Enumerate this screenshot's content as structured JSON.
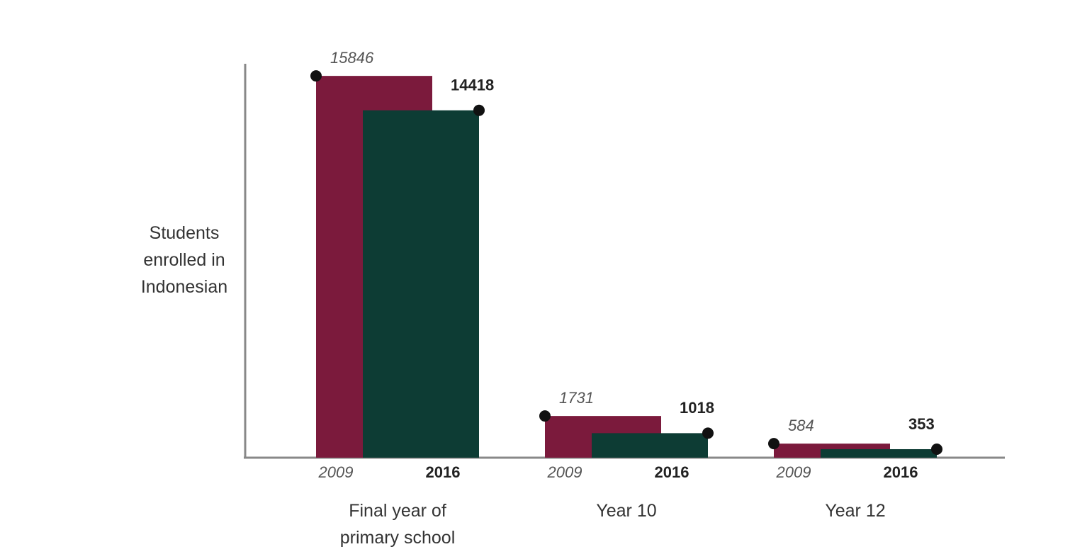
{
  "chart_data": {
    "type": "bar",
    "y_label": "Students enrolled in Indonesian",
    "categories": [
      "Final year of primary school",
      "Year 10",
      "Year 12"
    ],
    "series": [
      {
        "name": "2009",
        "color": "#7b1a3c",
        "values": [
          15846,
          1731,
          584
        ]
      },
      {
        "name": "2016",
        "color": "#0d3c34",
        "values": [
          14418,
          1018,
          353
        ]
      }
    ],
    "ylim": [
      0,
      16350
    ]
  }
}
